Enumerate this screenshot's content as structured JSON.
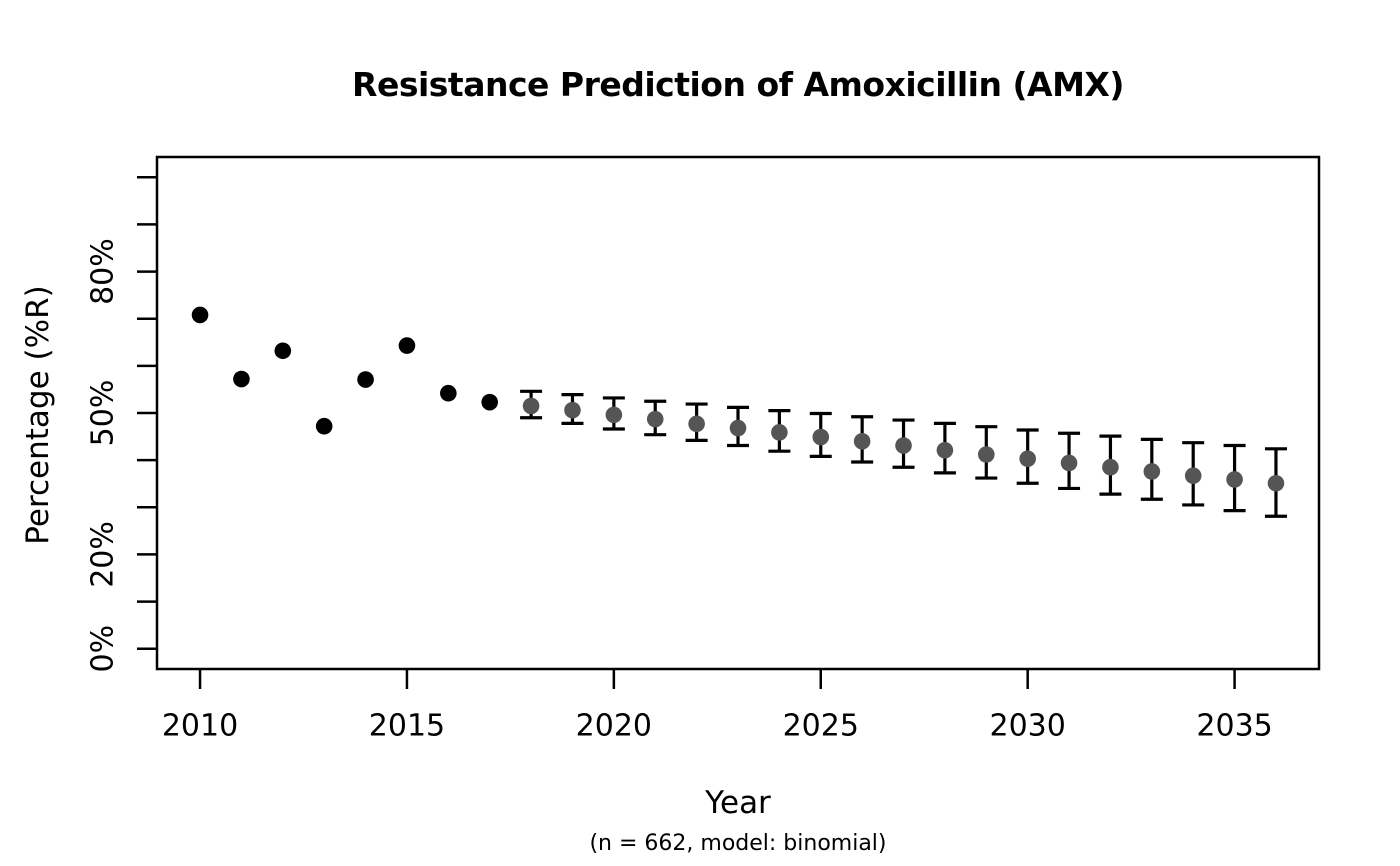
{
  "chart_data": {
    "type": "scatter",
    "title": "Resistance Prediction of Amoxicillin (AMX)",
    "subtitle": "(n = 662, model: binomial)",
    "xlabel": "Year",
    "ylabel": "Percentage (%R)",
    "grid": false,
    "legend": null,
    "xlim": [
      2008.96,
      2037.04
    ],
    "ylim": [
      -4.3,
      104.3
    ],
    "x_ticks": [
      2010,
      2015,
      2020,
      2025,
      2030,
      2035
    ],
    "y_ticks": [
      0,
      10,
      20,
      30,
      40,
      50,
      60,
      70,
      80,
      90,
      100
    ],
    "y_tick_labels": {
      "0": "0%",
      "20": "20%",
      "50": "50%",
      "80": "80%"
    },
    "series": [
      {
        "name": "observed",
        "style": "points",
        "color": "#000000",
        "points": [
          {
            "year": 2010,
            "value": 70.8
          },
          {
            "year": 2011,
            "value": 57.2
          },
          {
            "year": 2012,
            "value": 63.2
          },
          {
            "year": 2013,
            "value": 47.2
          },
          {
            "year": 2014,
            "value": 57.1
          },
          {
            "year": 2015,
            "value": 64.3
          },
          {
            "year": 2016,
            "value": 54.2
          },
          {
            "year": 2017,
            "value": 52.3
          }
        ]
      },
      {
        "name": "predicted",
        "style": "points-with-error-bars",
        "color": "#555555",
        "error_bar_color": "#000000",
        "points": [
          {
            "year": 2018,
            "value": 51.5,
            "ci_low": 49.0,
            "ci_high": 54.6
          },
          {
            "year": 2019,
            "value": 50.6,
            "ci_low": 47.8,
            "ci_high": 53.9
          },
          {
            "year": 2020,
            "value": 49.6,
            "ci_low": 46.6,
            "ci_high": 53.2
          },
          {
            "year": 2021,
            "value": 48.7,
            "ci_low": 45.4,
            "ci_high": 52.5
          },
          {
            "year": 2022,
            "value": 47.7,
            "ci_low": 44.2,
            "ci_high": 51.9
          },
          {
            "year": 2023,
            "value": 46.8,
            "ci_low": 43.1,
            "ci_high": 51.2
          },
          {
            "year": 2024,
            "value": 45.9,
            "ci_low": 41.9,
            "ci_high": 50.5
          },
          {
            "year": 2025,
            "value": 44.9,
            "ci_low": 40.8,
            "ci_high": 49.9
          },
          {
            "year": 2026,
            "value": 44.0,
            "ci_low": 39.6,
            "ci_high": 49.2
          },
          {
            "year": 2027,
            "value": 43.1,
            "ci_low": 38.5,
            "ci_high": 48.5
          },
          {
            "year": 2028,
            "value": 42.1,
            "ci_low": 37.3,
            "ci_high": 47.8
          },
          {
            "year": 2029,
            "value": 41.2,
            "ci_low": 36.2,
            "ci_high": 47.1
          },
          {
            "year": 2030,
            "value": 40.3,
            "ci_low": 35.1,
            "ci_high": 46.4
          },
          {
            "year": 2031,
            "value": 39.4,
            "ci_low": 34.0,
            "ci_high": 45.7
          },
          {
            "year": 2032,
            "value": 38.5,
            "ci_low": 32.8,
            "ci_high": 45.1
          },
          {
            "year": 2033,
            "value": 37.6,
            "ci_low": 31.7,
            "ci_high": 44.4
          },
          {
            "year": 2034,
            "value": 36.7,
            "ci_low": 30.5,
            "ci_high": 43.7
          },
          {
            "year": 2035,
            "value": 35.9,
            "ci_low": 29.3,
            "ci_high": 43.1
          },
          {
            "year": 2036,
            "value": 35.1,
            "ci_low": 28.1,
            "ci_high": 42.4
          }
        ]
      }
    ]
  }
}
